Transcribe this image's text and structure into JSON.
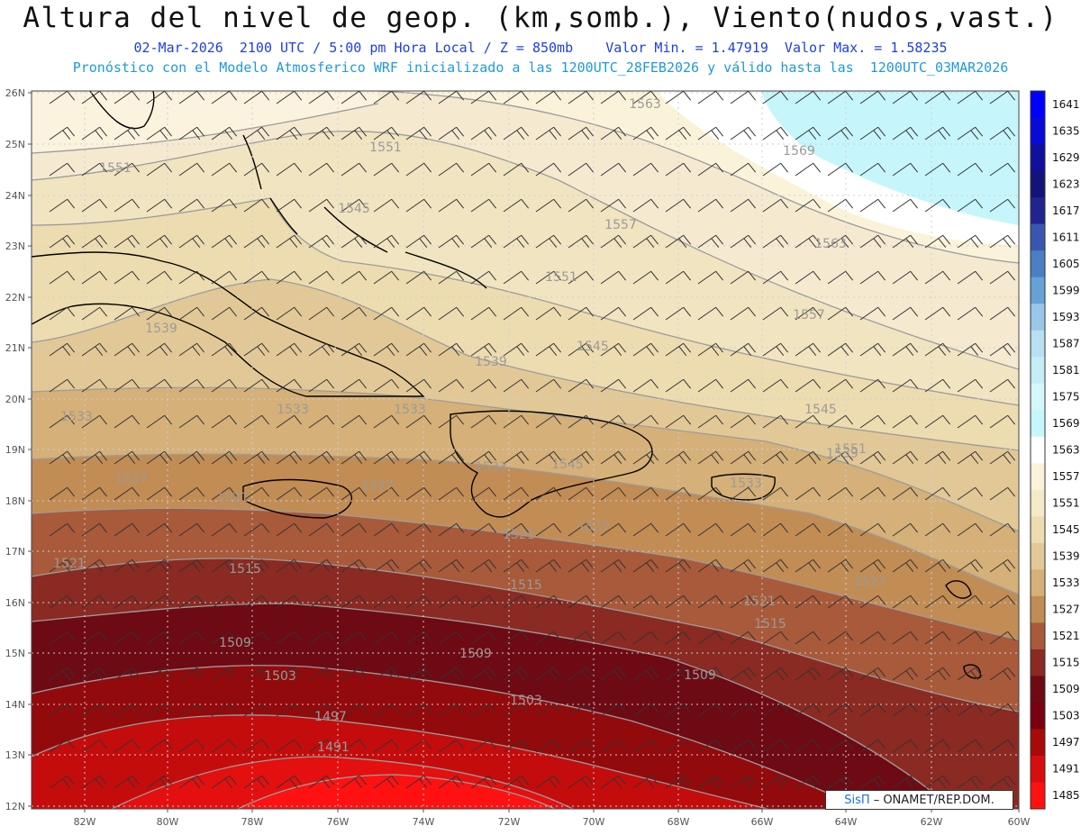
{
  "header": {
    "title": "Altura del nivel de geop. (km,somb.), Viento(nudos,vast.)",
    "subtitle": "02-Mar-2026  2100 UTC / 5:00 pm Hora Local / Z = 850mb    Valor Min. = 1.47919  Valor Max. = 1.58235",
    "info": "Pronóstico con el Modelo Atmosferico WRF inicializado a las 1200UTC_28FEB2026 y válido hasta las  1200UTC_03MAR2026"
  },
  "map": {
    "lat_labels": [
      "26N",
      "25N",
      "24N",
      "23N",
      "22N",
      "21N",
      "20N",
      "19N",
      "18N",
      "17N",
      "16N",
      "15N",
      "14N",
      "13N",
      "12N"
    ],
    "lon_labels": [
      "82W",
      "80W",
      "78W",
      "76W",
      "74W",
      "72W",
      "70W",
      "68W",
      "66W",
      "64W",
      "62W",
      "60W"
    ],
    "contours": [
      {
        "text": "1563"
      },
      {
        "text": "1569"
      },
      {
        "text": "1563"
      },
      {
        "text": "1551"
      },
      {
        "text": "1551"
      },
      {
        "text": "1557"
      },
      {
        "text": "1545"
      },
      {
        "text": "1551"
      },
      {
        "text": "1557"
      },
      {
        "text": "1545"
      },
      {
        "text": "1539"
      },
      {
        "text": "1545"
      },
      {
        "text": "1539"
      },
      {
        "text": "1551"
      },
      {
        "text": "1533"
      },
      {
        "text": "1533"
      },
      {
        "text": "1533"
      },
      {
        "text": "1545"
      },
      {
        "text": "1539"
      },
      {
        "text": "1527"
      },
      {
        "text": "1521"
      },
      {
        "text": "1527"
      },
      {
        "text": "1533"
      },
      {
        "text": "1533"
      },
      {
        "text": "1521"
      },
      {
        "text": "1527"
      },
      {
        "text": "1521"
      },
      {
        "text": "1515"
      },
      {
        "text": "1515"
      },
      {
        "text": "1527"
      },
      {
        "text": "1509"
      },
      {
        "text": "1521"
      },
      {
        "text": "1509"
      },
      {
        "text": "1515"
      },
      {
        "text": "1503"
      },
      {
        "text": "1503"
      },
      {
        "text": "1509"
      },
      {
        "text": "1497"
      },
      {
        "text": "1491"
      }
    ]
  },
  "colorbar": {
    "labels": [
      "1641",
      "1635",
      "1629",
      "1623",
      "1617",
      "1611",
      "1605",
      "1599",
      "1593",
      "1587",
      "1581",
      "1575",
      "1569",
      "1563",
      "1557",
      "1551",
      "1545",
      "1539",
      "1533",
      "1527",
      "1521",
      "1515",
      "1509",
      "1503",
      "1497",
      "1491",
      "1485"
    ],
    "colors": [
      "#0000ff",
      "#0a0ad8",
      "#10109e",
      "#13137a",
      "#1f2490",
      "#3a57b0",
      "#4a7fc4",
      "#65a2d8",
      "#9ac6e8",
      "#b8dff2",
      "#c6edf6",
      "#d5f6fb",
      "#c4f6fc",
      "#ffffff",
      "#fbf3d9",
      "#f4e9c8",
      "#eddcb0",
      "#e2c896",
      "#d5b078",
      "#c28c55",
      "#a85a3a",
      "#8a2a22",
      "#6e0a14",
      "#7a0010",
      "#a80a0a",
      "#d80d0d",
      "#ff1111"
    ]
  },
  "credit": {
    "brand": "SisΠ",
    "text": "– ONAMET/REP.DOM."
  }
}
